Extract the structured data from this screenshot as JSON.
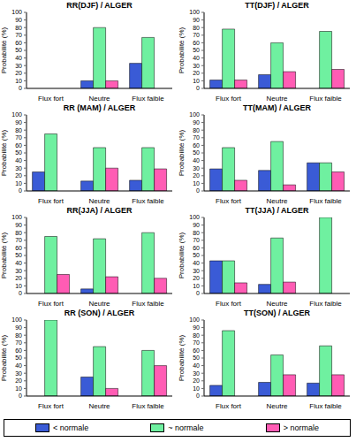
{
  "chart_data": [
    {
      "type": "bar",
      "title": "RR(DJF) / ALGER",
      "y_label": "Probabilité (%)",
      "categories": [
        "Flux fort",
        "Neutre",
        "Flux faible"
      ],
      "series": [
        {
          "name": "< normale",
          "color": "#3a5bd6",
          "values": [
            0,
            10,
            33
          ]
        },
        {
          "name": "~ normale",
          "color": "#6ff0a0",
          "values": [
            0,
            80,
            67
          ]
        },
        {
          "name": "> normale",
          "color": "#ff5cb4",
          "values": [
            0,
            10,
            0
          ]
        }
      ],
      "ylim": [
        0,
        100
      ],
      "yticks": [
        0,
        10,
        20,
        30,
        40,
        50,
        60,
        70,
        80,
        90,
        100
      ],
      "grid": false,
      "legend": "bottom"
    },
    {
      "type": "bar",
      "title": "TT(DJF) / ALGER",
      "y_label": "Probabilité (%)",
      "categories": [
        "Flux fort",
        "Neutre",
        "Flux faible"
      ],
      "series": [
        {
          "name": "< normale",
          "color": "#3a5bd6",
          "values": [
            11,
            18,
            0
          ]
        },
        {
          "name": "~ normale",
          "color": "#6ff0a0",
          "values": [
            78,
            60,
            75
          ]
        },
        {
          "name": "> normale",
          "color": "#ff5cb4",
          "values": [
            11,
            22,
            25
          ]
        }
      ],
      "ylim": [
        0,
        100
      ],
      "yticks": [
        0,
        10,
        20,
        30,
        40,
        50,
        60,
        70,
        80,
        90,
        100
      ],
      "grid": false,
      "legend": "bottom"
    },
    {
      "type": "bar",
      "title": "RR (MAM) / ALGER",
      "y_label": "Probabilité (%)",
      "categories": [
        "Flux fort",
        "Neutre",
        "Flux faible"
      ],
      "series": [
        {
          "name": "< normale",
          "color": "#3a5bd6",
          "values": [
            25,
            13,
            14
          ]
        },
        {
          "name": "~ normale",
          "color": "#6ff0a0",
          "values": [
            75,
            57,
            57
          ]
        },
        {
          "name": "> normale",
          "color": "#ff5cb4",
          "values": [
            0,
            30,
            29
          ]
        }
      ],
      "ylim": [
        0,
        100
      ],
      "yticks": [
        0,
        10,
        20,
        30,
        40,
        50,
        60,
        70,
        80,
        90,
        100
      ],
      "grid": false,
      "legend": "bottom"
    },
    {
      "type": "bar",
      "title": "TT(MAM) / ALGER",
      "y_label": "Probabilité (%)",
      "categories": [
        "Flux fort",
        "Neutre",
        "Flux faible"
      ],
      "series": [
        {
          "name": "< normale",
          "color": "#3a5bd6",
          "values": [
            29,
            27,
            37
          ]
        },
        {
          "name": "~ normale",
          "color": "#6ff0a0",
          "values": [
            57,
            65,
            37
          ]
        },
        {
          "name": "> normale",
          "color": "#ff5cb4",
          "values": [
            14,
            8,
            25
          ]
        }
      ],
      "ylim": [
        0,
        100
      ],
      "yticks": [
        0,
        10,
        20,
        30,
        40,
        50,
        60,
        70,
        80,
        90,
        100
      ],
      "grid": false,
      "legend": "bottom"
    },
    {
      "type": "bar",
      "title": "RR(JJA) / ALGER",
      "y_label": "Probabilité (%)",
      "categories": [
        "Flux fort",
        "Neutre",
        "Flux faible"
      ],
      "series": [
        {
          "name": "< normale",
          "color": "#3a5bd6",
          "values": [
            0,
            6,
            0
          ]
        },
        {
          "name": "~ normale",
          "color": "#6ff0a0",
          "values": [
            75,
            72,
            80
          ]
        },
        {
          "name": "> normale",
          "color": "#ff5cb4",
          "values": [
            25,
            22,
            20
          ]
        }
      ],
      "ylim": [
        0,
        100
      ],
      "yticks": [
        0,
        10,
        20,
        30,
        40,
        50,
        60,
        70,
        80,
        90,
        100
      ],
      "grid": false,
      "legend": "bottom"
    },
    {
      "type": "bar",
      "title": "TT(JJA) / ALGER",
      "y_label": "Probabilité (%)",
      "categories": [
        "Flux fort",
        "Neutre",
        "Flux faible"
      ],
      "series": [
        {
          "name": "< normale",
          "color": "#3a5bd6",
          "values": [
            43,
            12,
            0
          ]
        },
        {
          "name": "~ normale",
          "color": "#6ff0a0",
          "values": [
            43,
            73,
            100
          ]
        },
        {
          "name": "> normale",
          "color": "#ff5cb4",
          "values": [
            14,
            15,
            0
          ]
        }
      ],
      "ylim": [
        0,
        100
      ],
      "yticks": [
        0,
        10,
        20,
        30,
        40,
        50,
        60,
        70,
        80,
        90,
        100
      ],
      "grid": false,
      "legend": "bottom"
    },
    {
      "type": "bar",
      "title": "RR (SON) / ALGER",
      "y_label": "Probabilité (%)",
      "categories": [
        "Flux fort",
        "Neutre",
        "Flux faible"
      ],
      "series": [
        {
          "name": "< normale",
          "color": "#3a5bd6",
          "values": [
            0,
            25,
            0
          ]
        },
        {
          "name": "~ normale",
          "color": "#6ff0a0",
          "values": [
            100,
            65,
            60
          ]
        },
        {
          "name": "> normale",
          "color": "#ff5cb4",
          "values": [
            0,
            10,
            40
          ]
        }
      ],
      "ylim": [
        0,
        100
      ],
      "yticks": [
        0,
        10,
        20,
        30,
        40,
        50,
        60,
        70,
        80,
        90,
        100
      ],
      "grid": false,
      "legend": "bottom"
    },
    {
      "type": "bar",
      "title": "TT(SON) / ALGER",
      "y_label": "Probabilité (%)",
      "categories": [
        "Flux fort",
        "Neutre",
        "Flux faible"
      ],
      "series": [
        {
          "name": "< normale",
          "color": "#3a5bd6",
          "values": [
            14,
            18,
            17
          ]
        },
        {
          "name": "~ normale",
          "color": "#6ff0a0",
          "values": [
            86,
            54,
            66
          ]
        },
        {
          "name": "> normale",
          "color": "#ff5cb4",
          "values": [
            0,
            28,
            28
          ]
        }
      ],
      "ylim": [
        0,
        100
      ],
      "yticks": [
        0,
        10,
        20,
        30,
        40,
        50,
        60,
        70,
        80,
        90,
        100
      ],
      "grid": false,
      "legend": "bottom"
    }
  ]
}
